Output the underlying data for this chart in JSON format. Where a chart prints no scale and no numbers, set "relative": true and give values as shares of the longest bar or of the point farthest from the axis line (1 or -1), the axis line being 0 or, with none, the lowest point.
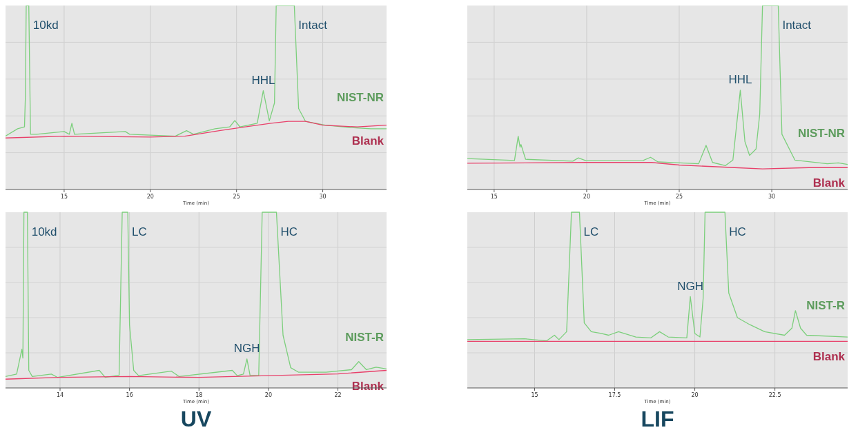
{
  "chart_data": [
    {
      "type": "line",
      "relative": true,
      "xlabel": "Time (min)",
      "xlim": [
        11.6,
        33.7
      ],
      "xticks": [
        15,
        20,
        25,
        30
      ],
      "grid": true,
      "annotations": [
        {
          "text": "10kd",
          "x": 12.95,
          "y": 1
        },
        {
          "text": "HHL",
          "x": 26.55,
          "y": 0.537
        },
        {
          "text": "Intact",
          "x": 28.35,
          "y": 1
        }
      ],
      "series": [
        {
          "name": "NIST-NR",
          "color": "#7ccf7c",
          "x": [
            11.6,
            12.3,
            12.7,
            12.75,
            12.8,
            12.95,
            13.05,
            13.4,
            15.0,
            15.3,
            15.45,
            15.6,
            18.55,
            18.8,
            21.45,
            22.1,
            22.5,
            23.75,
            24.6,
            24.9,
            25.2,
            26.2,
            26.55,
            26.9,
            27.2,
            27.3,
            28.35,
            28.6,
            29.0,
            30.15,
            31.6,
            32.8,
            33.7
          ],
          "values": [
            0.29,
            0.33,
            0.34,
            0.5,
            1,
            1,
            0.3,
            0.3,
            0.315,
            0.3,
            0.36,
            0.3,
            0.315,
            0.3,
            0.29,
            0.32,
            0.3,
            0.33,
            0.34,
            0.375,
            0.34,
            0.36,
            0.537,
            0.373,
            0.47,
            1,
            1,
            0.44,
            0.37,
            0.35,
            0.337,
            0.33,
            0.33
          ]
        },
        {
          "name": "Blank",
          "color": "#e8406a",
          "x": [
            11.6,
            15,
            20,
            22,
            24,
            25.5,
            27,
            28,
            29,
            30,
            32,
            33.7
          ],
          "values": [
            0.28,
            0.29,
            0.285,
            0.29,
            0.32,
            0.34,
            0.36,
            0.37,
            0.37,
            0.35,
            0.34,
            0.35
          ]
        }
      ]
    },
    {
      "type": "line",
      "relative": true,
      "xlabel": "Time (min)",
      "xlim": [
        13.55,
        34.1
      ],
      "xticks": [
        15,
        20,
        25,
        30
      ],
      "grid": true,
      "annotations": [
        {
          "text": "HHL",
          "x": 28.3,
          "y": 0.54
        },
        {
          "text": "Intact",
          "x": 30.35,
          "y": 1
        }
      ],
      "series": [
        {
          "name": "NIST-NR",
          "color": "#7ccf7c",
          "x": [
            13.55,
            16.1,
            16.3,
            16.4,
            16.45,
            16.7,
            19.25,
            19.55,
            19.95,
            23.05,
            23.45,
            23.85,
            26.05,
            26.45,
            26.8,
            27.5,
            27.9,
            28.3,
            28.55,
            28.8,
            29.15,
            29.35,
            29.5,
            30.35,
            30.55,
            31.25,
            33.0,
            33.6,
            34.1
          ],
          "values": [
            0.168,
            0.158,
            0.29,
            0.23,
            0.245,
            0.164,
            0.154,
            0.172,
            0.157,
            0.158,
            0.175,
            0.15,
            0.14,
            0.24,
            0.147,
            0.13,
            0.16,
            0.54,
            0.26,
            0.185,
            0.22,
            0.41,
            1,
            1,
            0.3,
            0.16,
            0.14,
            0.145,
            0.136
          ]
        },
        {
          "name": "Blank",
          "color": "#e8406a",
          "x": [
            13.55,
            20,
            23.5,
            25,
            28,
            29.5,
            32,
            34.1
          ],
          "values": [
            0.143,
            0.147,
            0.147,
            0.133,
            0.119,
            0.112,
            0.119,
            0.119
          ]
        }
      ]
    },
    {
      "type": "line",
      "relative": true,
      "xlabel": "Time (min)",
      "xlim": [
        12.43,
        23.4
      ],
      "xticks": [
        14,
        16,
        18,
        20,
        22
      ],
      "grid": true,
      "annotations": [
        {
          "text": "10kd",
          "x": 13.06,
          "y": 1
        },
        {
          "text": "LC",
          "x": 15.95,
          "y": 1
        },
        {
          "text": "NGH",
          "x": 19.38,
          "y": 0.165
        },
        {
          "text": "HC",
          "x": 20.23,
          "y": 1
        },
        "UV"
      ],
      "series": [
        {
          "name": "NIST-R",
          "color": "#7ccf7c",
          "x": [
            12.43,
            12.75,
            12.9,
            12.93,
            12.96,
            13.06,
            13.1,
            13.2,
            13.75,
            13.93,
            15.13,
            15.3,
            15.7,
            15.79,
            15.95,
            16.0,
            16.12,
            16.26,
            17.2,
            17.43,
            18.96,
            19.1,
            19.28,
            19.38,
            19.47,
            19.72,
            19.82,
            20.23,
            20.42,
            20.64,
            20.86,
            21.66,
            22.39,
            22.6,
            22.82,
            23.1,
            23.4
          ],
          "values": [
            0.065,
            0.079,
            0.22,
            0.17,
            1,
            1,
            0.1,
            0.065,
            0.079,
            0.06,
            0.1,
            0.06,
            0.072,
            1,
            1,
            0.36,
            0.1,
            0.07,
            0.096,
            0.065,
            0.1,
            0.07,
            0.079,
            0.165,
            0.072,
            0.07,
            1,
            1,
            0.3,
            0.115,
            0.09,
            0.09,
            0.104,
            0.15,
            0.104,
            0.118,
            0.108
          ]
        },
        {
          "name": "Blank",
          "color": "#e8406a",
          "x": [
            12.43,
            14,
            16,
            18,
            20,
            22,
            23.4
          ],
          "values": [
            0.05,
            0.06,
            0.065,
            0.06,
            0.07,
            0.08,
            0.1
          ]
        }
      ]
    },
    {
      "type": "line",
      "relative": true,
      "xlabel": "Time (min)",
      "xlim": [
        12.9,
        24.77
      ],
      "xticks": [
        15,
        17.5,
        20,
        22.5
      ],
      "grid": true,
      "annotations": [
        {
          "text": "LC",
          "x": 16.4,
          "y": 1
        },
        {
          "text": "NGH",
          "x": 19.86,
          "y": 0.52
        },
        {
          "text": "HC",
          "x": 20.94,
          "y": 1
        },
        "LIF"
      ],
      "series": [
        {
          "name": "NIST-R",
          "color": "#7ccf7c",
          "x": [
            12.9,
            14.68,
            15.37,
            15.62,
            15.76,
            16.0,
            16.15,
            16.4,
            16.55,
            16.77,
            17.08,
            17.31,
            17.62,
            18.16,
            18.63,
            18.9,
            19.17,
            19.75,
            19.86,
            20.0,
            20.16,
            20.26,
            20.32,
            20.94,
            21.06,
            21.33,
            21.72,
            22.18,
            22.8,
            23.03,
            23.14,
            23.3,
            23.49,
            24.77
          ],
          "values": [
            0.275,
            0.28,
            0.268,
            0.3,
            0.275,
            0.32,
            1,
            1,
            0.37,
            0.32,
            0.31,
            0.3,
            0.32,
            0.29,
            0.285,
            0.32,
            0.29,
            0.285,
            0.52,
            0.31,
            0.29,
            0.51,
            1,
            1,
            0.54,
            0.4,
            0.36,
            0.32,
            0.3,
            0.34,
            0.44,
            0.34,
            0.3,
            0.29
          ]
        },
        {
          "name": "Blank",
          "color": "#e8406a",
          "x": [
            12.9,
            18.5,
            24.77
          ],
          "values": [
            0.265,
            0.265,
            0.265
          ]
        }
      ]
    }
  ]
}
